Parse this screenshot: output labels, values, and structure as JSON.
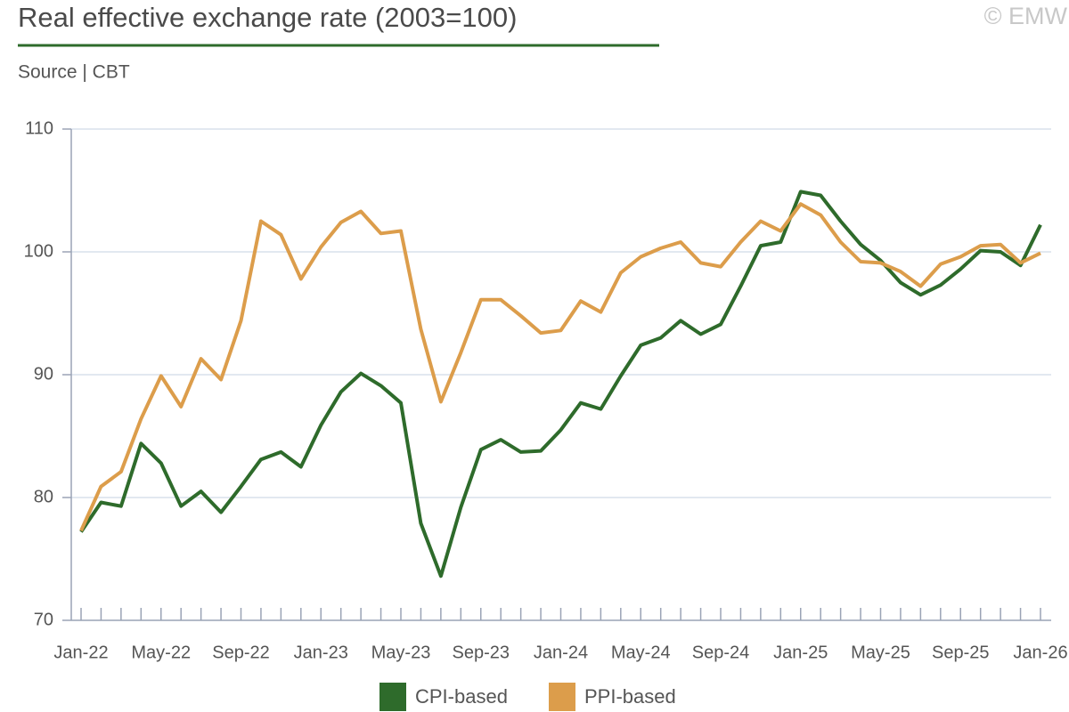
{
  "chart_data": {
    "type": "line",
    "title": "Real effective exchange rate (2003=100)",
    "subtitle": "Source | CBT",
    "watermark": "© EMW",
    "categories": [
      "Jan-22",
      null,
      null,
      null,
      "May-22",
      null,
      null,
      null,
      "Sep-22",
      null,
      null,
      null,
      "Jan-23",
      null,
      null,
      null,
      "May-23",
      null,
      null,
      null,
      "Sep-23",
      null,
      null,
      null,
      "Jan-24",
      null,
      null,
      null,
      "May-24",
      null,
      null,
      null,
      "Sep-24",
      null,
      null,
      null,
      "Jan-25",
      null,
      null,
      null,
      "May-25",
      null,
      null,
      null,
      "Sep-25",
      null,
      null,
      null,
      "Jan-26"
    ],
    "series": [
      {
        "name": "CPI-based",
        "color": "#2e6b2b",
        "values": [
          77.2,
          79.6,
          79.3,
          84.4,
          82.8,
          79.3,
          80.5,
          78.8,
          80.9,
          83.1,
          83.7,
          82.5,
          85.9,
          88.6,
          90.1,
          89.1,
          87.7,
          77.9,
          73.6,
          79.2,
          83.9,
          84.7,
          83.7,
          83.8,
          85.5,
          87.7,
          87.2,
          89.9,
          92.4,
          93.0,
          94.4,
          93.3,
          94.1,
          97.2,
          100.5,
          100.8,
          104.9,
          104.6,
          102.5,
          100.6,
          99.3,
          97.5,
          96.5,
          97.3,
          98.6,
          100.1,
          100.0,
          98.9,
          102.2
        ]
      },
      {
        "name": "PPI-based",
        "color": "#dc9d4b",
        "values": [
          77.3,
          80.9,
          82.1,
          86.4,
          89.9,
          87.4,
          91.3,
          89.6,
          94.4,
          102.5,
          101.4,
          97.8,
          100.4,
          102.4,
          103.3,
          101.5,
          101.7,
          93.7,
          87.8,
          91.8,
          96.1,
          96.1,
          94.8,
          93.4,
          93.6,
          96.0,
          95.1,
          98.3,
          99.6,
          100.3,
          100.8,
          99.1,
          98.8,
          100.8,
          102.5,
          101.7,
          103.9,
          103.0,
          100.8,
          99.2,
          99.1,
          98.4,
          97.2,
          99.0,
          99.6,
          100.5,
          100.6,
          99.1,
          99.9
        ]
      }
    ],
    "ylim": [
      70,
      110
    ],
    "yticks": [
      70,
      80,
      90,
      100,
      110
    ],
    "grid": true
  }
}
